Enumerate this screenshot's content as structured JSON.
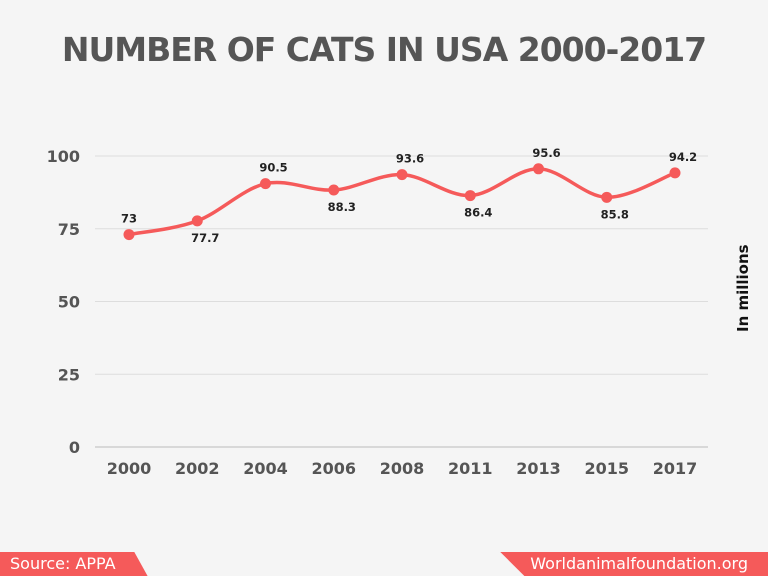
{
  "chart_data": {
    "type": "line",
    "title": "NUMBER OF CATS IN USA 2000-2017",
    "ylabel": "In millions",
    "xlabel": "",
    "categories": [
      "2000",
      "2002",
      "2004",
      "2006",
      "2008",
      "2011",
      "2013",
      "2015",
      "2017"
    ],
    "values": [
      73,
      77.7,
      90.5,
      88.3,
      93.6,
      86.4,
      95.6,
      85.8,
      94.2
    ],
    "data_labels": [
      "73",
      "77.7",
      "90.5",
      "88.3",
      "93.6",
      "86.4",
      "95.6",
      "85.8",
      "94.2"
    ],
    "ylim": [
      0,
      100
    ],
    "yticks": [
      "0",
      "25",
      "50",
      "75",
      "100"
    ],
    "grid": true,
    "smooth": true,
    "color": "#f55a5a"
  },
  "footer": {
    "source": "Source: APPA",
    "site": "Worldanimalfoundation.org"
  }
}
